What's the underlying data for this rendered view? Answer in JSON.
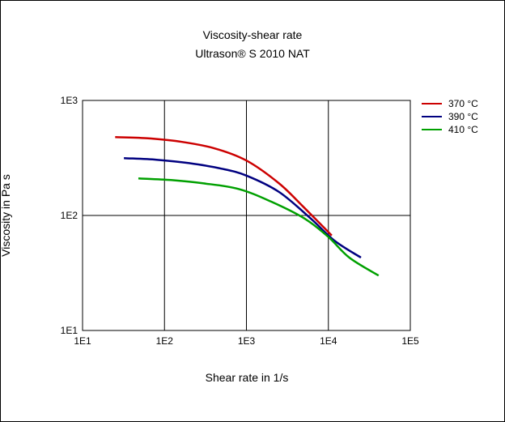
{
  "chart_data": {
    "type": "line",
    "title": "Viscosity-shear rate",
    "subtitle": "Ultrason® S 2010 NAT",
    "xlabel": "Shear rate in 1/s",
    "ylabel": "Viscosity in Pa s",
    "x_scale": "log",
    "y_scale": "log",
    "xlim": [
      10,
      100000
    ],
    "ylim": [
      10,
      1000
    ],
    "x_ticks": [
      {
        "value": 10,
        "label": "1E1"
      },
      {
        "value": 100,
        "label": "1E2"
      },
      {
        "value": 1000,
        "label": "1E3"
      },
      {
        "value": 10000,
        "label": "1E4"
      },
      {
        "value": 100000,
        "label": "1E5"
      }
    ],
    "y_ticks": [
      {
        "value": 10,
        "label": "1E1"
      },
      {
        "value": 100,
        "label": "1E2"
      },
      {
        "value": 1000,
        "label": "1E3"
      }
    ],
    "grid": true,
    "legend_position": "right",
    "series": [
      {
        "name": "370 °C",
        "color": "#cc0000",
        "points": [
          [
            25,
            480
          ],
          [
            60,
            470
          ],
          [
            150,
            440
          ],
          [
            400,
            385
          ],
          [
            1000,
            300
          ],
          [
            2500,
            190
          ],
          [
            5000,
            118
          ],
          [
            11000,
            67
          ]
        ]
      },
      {
        "name": "390 °C",
        "color": "#000080",
        "points": [
          [
            32,
            315
          ],
          [
            80,
            305
          ],
          [
            200,
            285
          ],
          [
            500,
            255
          ],
          [
            1000,
            222
          ],
          [
            2500,
            160
          ],
          [
            6000,
            95
          ],
          [
            12000,
            60
          ],
          [
            25000,
            43
          ]
        ]
      },
      {
        "name": "410 °C",
        "color": "#00a000",
        "points": [
          [
            48,
            210
          ],
          [
            120,
            203
          ],
          [
            300,
            190
          ],
          [
            800,
            170
          ],
          [
            2000,
            132
          ],
          [
            5000,
            95
          ],
          [
            10000,
            65
          ],
          [
            18000,
            43
          ],
          [
            41000,
            30
          ]
        ]
      }
    ]
  }
}
